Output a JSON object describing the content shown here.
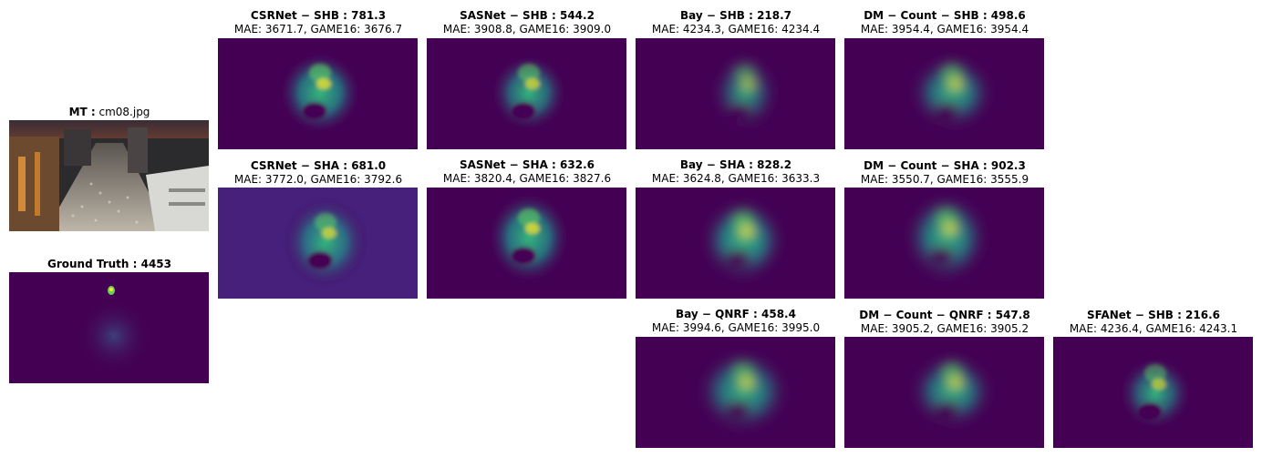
{
  "colors": {
    "viridis_dark": "#440154",
    "viridis_mid": "#21918c",
    "viridis_bright": "#fde725"
  },
  "input": {
    "title_bold": "MT :",
    "title_rest": " cm08.jpg"
  },
  "ground_truth": {
    "title": "Ground Truth : 4453"
  },
  "panels": [
    {
      "title": "CSRNet − SHB : 781.3",
      "metrics": "MAE: 3671.7, GAME16: 3676.7"
    },
    {
      "title": "SASNet − SHB : 544.2",
      "metrics": "MAE: 3908.8, GAME16: 3909.0"
    },
    {
      "title": "Bay − SHB : 218.7",
      "metrics": "MAE: 4234.3, GAME16: 4234.4"
    },
    {
      "title": "DM − Count − SHB : 498.6",
      "metrics": "MAE: 3954.4, GAME16: 3954.4"
    },
    {
      "title": "CSRNet − SHA : 681.0",
      "metrics": "MAE: 3772.0, GAME16: 3792.6"
    },
    {
      "title": "SASNet − SHA : 632.6",
      "metrics": "MAE: 3820.4, GAME16: 3827.6"
    },
    {
      "title": "Bay − SHA : 828.2",
      "metrics": "MAE: 3624.8, GAME16: 3633.3"
    },
    {
      "title": "DM − Count − SHA : 902.3",
      "metrics": "MAE: 3550.7, GAME16: 3555.9"
    },
    {
      "title": "Bay − QNRF : 458.4",
      "metrics": "MAE: 3994.6, GAME16: 3995.0"
    },
    {
      "title": "DM − Count − QNRF : 547.8",
      "metrics": "MAE: 3905.2, GAME16: 3905.2"
    },
    {
      "title": "SFANet − SHB : 216.6",
      "metrics": "MAE: 4236.4, GAME16: 4243.1"
    }
  ]
}
